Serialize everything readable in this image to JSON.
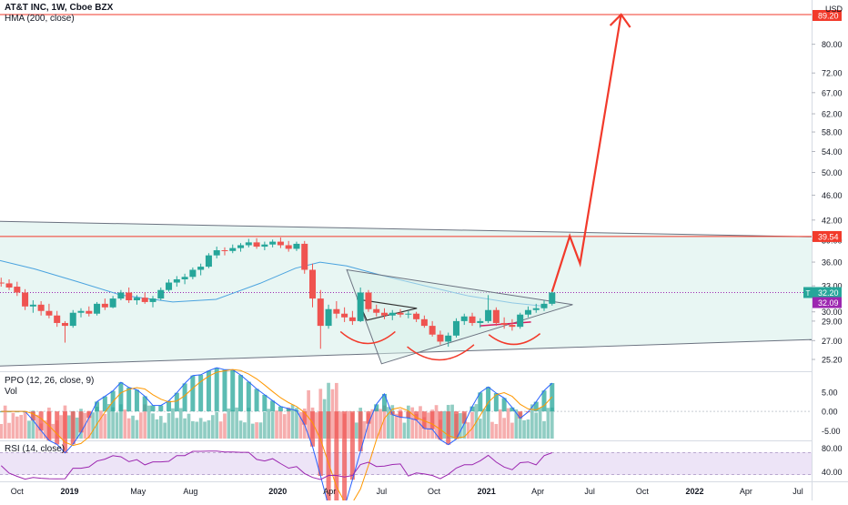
{
  "header": {
    "symbol_line": "AT&T INC, 1W, Cboe BZX",
    "indicator": "HMA (200, close)",
    "currency": "USD"
  },
  "panes": {
    "ppo_label": "PPO (12, 26, close, 9)",
    "vol_label": "Vol",
    "rsi_label": "RSI (14, close)"
  },
  "colors": {
    "up": "#26a69a",
    "down": "#ef5350",
    "vol_up": "#7dc4b8",
    "vol_down": "#f5a0a0",
    "hma": "#4aa3df",
    "drawing": "#f23a2b",
    "price_line": "#9c27b0",
    "channel": "#6b7280",
    "fill": "#e4f5f1",
    "rsi": "#9c27b0",
    "rsi_band": "#ede4f7"
  },
  "chart_data": [
    {
      "type": "candlestick",
      "title": "AT&T INC, 1W, Cboe BZX",
      "ylim": [
        25.2,
        89.2
      ],
      "yscale": "log",
      "y_ticks": [
        "25.20",
        "27.00",
        "29.00",
        "30.00",
        "33.00",
        "36.00",
        "39.00",
        "42.00",
        "46.00",
        "50.00",
        "54.00",
        "58.00",
        "62.00",
        "67.00",
        "72.00",
        "80.00"
      ],
      "x_ticks": [
        "Oct",
        "2019",
        "May",
        "Aug",
        "2020",
        "Apr",
        "Jul",
        "Oct",
        "2021",
        "Apr",
        "Jul",
        "Oct",
        "2022",
        "Apr",
        "Jul"
      ],
      "x_start": "2018-09-01",
      "x_end": "2022-07-25",
      "price_labels": [
        {
          "text": "89.20",
          "value": 89.2,
          "color": "#f23a2b"
        },
        {
          "text": "39.54",
          "value": 39.54,
          "color": "#f23a2b"
        },
        {
          "text": "32.20",
          "value": 32.2,
          "color": "#26a69a",
          "tag": "T"
        },
        {
          "text": "32.09",
          "value": 32.09,
          "color": "#9c27b0"
        }
      ],
      "candles": [
        {
          "date": "2018-09-03",
          "o": 33.4,
          "h": 34.0,
          "l": 32.9,
          "c": 33.3
        },
        {
          "date": "2018-09-17",
          "o": 33.3,
          "h": 33.8,
          "l": 32.5,
          "c": 32.8
        },
        {
          "date": "2018-10-01",
          "o": 32.9,
          "h": 33.5,
          "l": 31.8,
          "c": 32.2
        },
        {
          "date": "2018-10-15",
          "o": 32.2,
          "h": 32.6,
          "l": 30.2,
          "c": 30.6
        },
        {
          "date": "2018-10-29",
          "o": 30.6,
          "h": 31.3,
          "l": 29.9,
          "c": 30.8
        },
        {
          "date": "2018-11-12",
          "o": 30.8,
          "h": 31.2,
          "l": 29.6,
          "c": 30.1
        },
        {
          "date": "2018-11-26",
          "o": 30.1,
          "h": 30.9,
          "l": 29.3,
          "c": 29.6
        },
        {
          "date": "2018-12-10",
          "o": 29.6,
          "h": 30.1,
          "l": 28.4,
          "c": 28.8
        },
        {
          "date": "2018-12-24",
          "o": 28.8,
          "h": 29.0,
          "l": 26.8,
          "c": 28.5
        },
        {
          "date": "2019-01-07",
          "o": 28.5,
          "h": 30.2,
          "l": 28.3,
          "c": 29.9
        },
        {
          "date": "2019-01-21",
          "o": 29.9,
          "h": 30.4,
          "l": 29.4,
          "c": 30.1
        },
        {
          "date": "2019-02-04",
          "o": 30.1,
          "h": 30.6,
          "l": 29.5,
          "c": 29.8
        },
        {
          "date": "2019-02-18",
          "o": 29.8,
          "h": 31.1,
          "l": 29.6,
          "c": 30.9
        },
        {
          "date": "2019-03-04",
          "o": 30.9,
          "h": 31.5,
          "l": 30.2,
          "c": 30.5
        },
        {
          "date": "2019-03-18",
          "o": 30.5,
          "h": 31.8,
          "l": 30.4,
          "c": 31.5
        },
        {
          "date": "2019-04-01",
          "o": 31.5,
          "h": 32.5,
          "l": 31.3,
          "c": 32.2
        },
        {
          "date": "2019-04-15",
          "o": 32.2,
          "h": 32.8,
          "l": 31.0,
          "c": 31.3
        },
        {
          "date": "2019-04-29",
          "o": 31.3,
          "h": 31.9,
          "l": 30.8,
          "c": 31.6
        },
        {
          "date": "2019-05-13",
          "o": 31.6,
          "h": 32.2,
          "l": 30.9,
          "c": 31.1
        },
        {
          "date": "2019-05-27",
          "o": 31.1,
          "h": 31.8,
          "l": 30.5,
          "c": 31.5
        },
        {
          "date": "2019-06-10",
          "o": 31.5,
          "h": 32.8,
          "l": 31.3,
          "c": 32.5
        },
        {
          "date": "2019-06-24",
          "o": 32.5,
          "h": 33.8,
          "l": 32.3,
          "c": 33.4
        },
        {
          "date": "2019-07-08",
          "o": 33.4,
          "h": 34.2,
          "l": 32.9,
          "c": 33.8
        },
        {
          "date": "2019-07-22",
          "o": 33.8,
          "h": 34.5,
          "l": 33.2,
          "c": 34.1
        },
        {
          "date": "2019-08-05",
          "o": 34.1,
          "h": 35.3,
          "l": 33.8,
          "c": 35.0
        },
        {
          "date": "2019-08-19",
          "o": 35.0,
          "h": 35.8,
          "l": 34.3,
          "c": 35.4
        },
        {
          "date": "2019-09-02",
          "o": 35.4,
          "h": 37.2,
          "l": 35.2,
          "c": 36.9
        },
        {
          "date": "2019-09-16",
          "o": 36.9,
          "h": 38.1,
          "l": 36.5,
          "c": 37.6
        },
        {
          "date": "2019-09-30",
          "o": 37.6,
          "h": 38.0,
          "l": 36.9,
          "c": 37.5
        },
        {
          "date": "2019-10-14",
          "o": 37.5,
          "h": 38.4,
          "l": 37.2,
          "c": 37.9
        },
        {
          "date": "2019-10-28",
          "o": 37.9,
          "h": 38.6,
          "l": 37.4,
          "c": 38.3
        },
        {
          "date": "2019-11-11",
          "o": 38.3,
          "h": 39.2,
          "l": 38.0,
          "c": 38.7
        },
        {
          "date": "2019-11-25",
          "o": 38.7,
          "h": 39.3,
          "l": 37.8,
          "c": 38.1
        },
        {
          "date": "2019-12-09",
          "o": 38.1,
          "h": 38.8,
          "l": 37.6,
          "c": 38.4
        },
        {
          "date": "2019-12-23",
          "o": 38.4,
          "h": 39.1,
          "l": 38.0,
          "c": 38.8
        },
        {
          "date": "2020-01-06",
          "o": 38.8,
          "h": 39.4,
          "l": 37.9,
          "c": 38.3
        },
        {
          "date": "2020-01-20",
          "o": 38.3,
          "h": 38.9,
          "l": 37.4,
          "c": 37.8
        },
        {
          "date": "2020-02-03",
          "o": 37.8,
          "h": 38.8,
          "l": 37.5,
          "c": 38.5
        },
        {
          "date": "2020-02-17",
          "o": 38.5,
          "h": 38.9,
          "l": 34.5,
          "c": 35.0
        },
        {
          "date": "2020-03-02",
          "o": 35.0,
          "h": 35.8,
          "l": 30.5,
          "c": 31.5
        },
        {
          "date": "2020-03-16",
          "o": 31.5,
          "h": 32.5,
          "l": 26.2,
          "c": 28.5
        },
        {
          "date": "2020-03-30",
          "o": 28.5,
          "h": 30.8,
          "l": 28.2,
          "c": 30.3
        },
        {
          "date": "2020-04-13",
          "o": 30.3,
          "h": 31.2,
          "l": 29.3,
          "c": 29.8
        },
        {
          "date": "2020-04-27",
          "o": 29.8,
          "h": 30.5,
          "l": 28.9,
          "c": 29.4
        },
        {
          "date": "2020-05-11",
          "o": 29.4,
          "h": 30.1,
          "l": 28.6,
          "c": 29.0
        },
        {
          "date": "2020-05-25",
          "o": 29.0,
          "h": 32.8,
          "l": 28.9,
          "c": 32.2
        },
        {
          "date": "2020-06-08",
          "o": 32.2,
          "h": 32.5,
          "l": 30.0,
          "c": 30.3
        },
        {
          "date": "2020-06-22",
          "o": 30.3,
          "h": 30.8,
          "l": 29.5,
          "c": 29.9
        },
        {
          "date": "2020-07-06",
          "o": 29.9,
          "h": 30.4,
          "l": 29.2,
          "c": 29.6
        },
        {
          "date": "2020-07-20",
          "o": 29.6,
          "h": 30.2,
          "l": 29.1,
          "c": 29.9
        },
        {
          "date": "2020-08-03",
          "o": 29.9,
          "h": 30.3,
          "l": 29.4,
          "c": 29.7
        },
        {
          "date": "2020-08-17",
          "o": 29.7,
          "h": 30.1,
          "l": 29.3,
          "c": 29.8
        },
        {
          "date": "2020-08-31",
          "o": 29.8,
          "h": 30.0,
          "l": 28.9,
          "c": 29.2
        },
        {
          "date": "2020-09-14",
          "o": 29.2,
          "h": 29.6,
          "l": 28.3,
          "c": 28.5
        },
        {
          "date": "2020-09-28",
          "o": 28.5,
          "h": 29.0,
          "l": 27.4,
          "c": 27.6
        },
        {
          "date": "2020-10-12",
          "o": 27.6,
          "h": 28.0,
          "l": 26.6,
          "c": 26.9
        },
        {
          "date": "2020-10-26",
          "o": 26.9,
          "h": 27.8,
          "l": 26.4,
          "c": 27.5
        },
        {
          "date": "2020-11-09",
          "o": 27.5,
          "h": 29.3,
          "l": 27.3,
          "c": 29.0
        },
        {
          "date": "2020-11-23",
          "o": 29.0,
          "h": 29.8,
          "l": 28.6,
          "c": 29.5
        },
        {
          "date": "2020-12-07",
          "o": 29.5,
          "h": 29.9,
          "l": 28.5,
          "c": 28.8
        },
        {
          "date": "2020-12-21",
          "o": 28.8,
          "h": 29.3,
          "l": 28.3,
          "c": 29.0
        },
        {
          "date": "2021-01-04",
          "o": 29.0,
          "h": 31.9,
          "l": 28.8,
          "c": 30.2
        },
        {
          "date": "2021-01-18",
          "o": 30.2,
          "h": 30.5,
          "l": 28.5,
          "c": 28.8
        },
        {
          "date": "2021-02-01",
          "o": 28.8,
          "h": 29.4,
          "l": 28.2,
          "c": 28.6
        },
        {
          "date": "2021-02-15",
          "o": 28.6,
          "h": 29.2,
          "l": 28.0,
          "c": 28.4
        },
        {
          "date": "2021-03-01",
          "o": 28.4,
          "h": 29.9,
          "l": 28.2,
          "c": 29.7
        },
        {
          "date": "2021-03-15",
          "o": 29.7,
          "h": 30.6,
          "l": 29.4,
          "c": 30.2
        },
        {
          "date": "2021-03-29",
          "o": 30.2,
          "h": 30.9,
          "l": 29.9,
          "c": 30.4
        },
        {
          "date": "2021-04-12",
          "o": 30.4,
          "h": 31.3,
          "l": 30.1,
          "c": 30.9
        },
        {
          "date": "2021-04-26",
          "o": 30.9,
          "h": 32.6,
          "l": 30.7,
          "c": 32.2
        }
      ]
    },
    {
      "type": "bar",
      "title": "PPO (12, 26, close, 9)",
      "ylim": [
        -7,
        8
      ],
      "y_ticks": [
        "5.00",
        "0.00",
        "-5.00"
      ]
    },
    {
      "type": "line",
      "title": "RSI (14, close)",
      "ylim": [
        25,
        85
      ],
      "y_ticks": [
        "80.00",
        "40.00"
      ]
    }
  ]
}
